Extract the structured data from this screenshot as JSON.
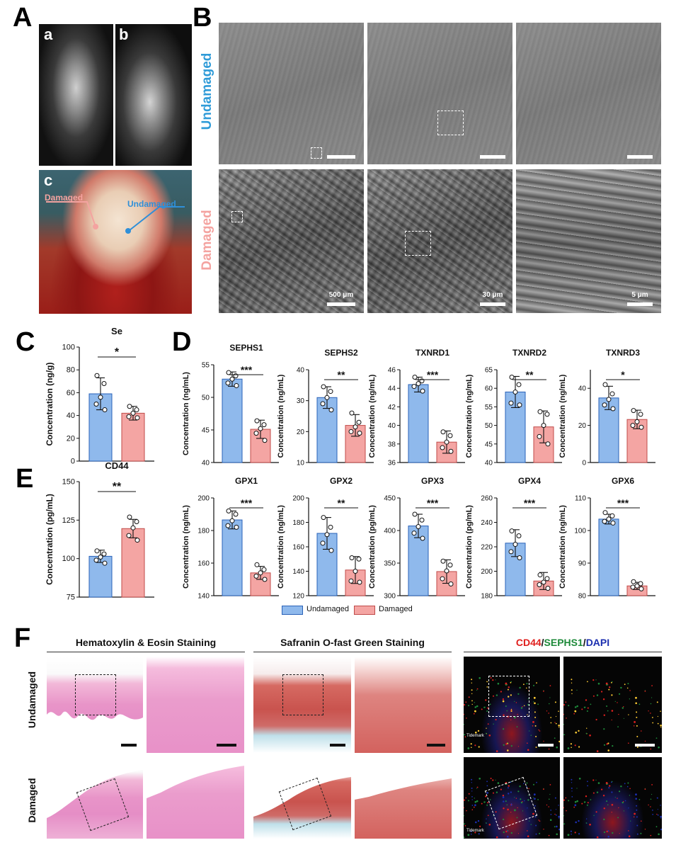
{
  "panels": {
    "A": "A",
    "B": "B",
    "C": "C",
    "D": "D",
    "E": "E",
    "F": "F",
    "A_sub": [
      "a",
      "b",
      "c"
    ]
  },
  "panelA": {
    "label_damaged": "Damaged",
    "label_undamaged": "Undamaged",
    "colors": {
      "damaged": "#f4a3a0",
      "undamaged": "#2f8fd8"
    }
  },
  "panelB": {
    "row_labels": [
      "Undamaged",
      "Damaged"
    ],
    "row_colors": [
      "#2f9bd8",
      "#f4a3a0"
    ],
    "scalebars": [
      "500 μm",
      "30 μm",
      "5 μm"
    ]
  },
  "legend": {
    "undamaged": "Undamaged",
    "damaged": "Damaged"
  },
  "colors": {
    "undamaged": "#8fb9ec",
    "damaged": "#f4a5a3",
    "undamaged_edge": "#2a62b8",
    "damaged_edge": "#c04b49"
  },
  "chart_data": [
    {
      "id": "C",
      "type": "bar",
      "title": "Se",
      "ylabel": "Concentration (ng/g)",
      "ylim": [
        0,
        100
      ],
      "ticks": [
        0,
        20,
        40,
        60,
        80,
        100
      ],
      "categories": [
        "Undamaged",
        "Damaged"
      ],
      "values": [
        59,
        42
      ],
      "errors": [
        14,
        6
      ],
      "points": [
        [
          75,
          68,
          56,
          50,
          45
        ],
        [
          48,
          45,
          42,
          39,
          38
        ]
      ],
      "sig": "*"
    },
    {
      "id": "D1",
      "type": "bar",
      "title": "SEPHS1",
      "ylabel": "Concentration (ng/mL)",
      "ylim": [
        40,
        55
      ],
      "ticks": [
        40,
        45,
        50,
        55
      ],
      "categories": [
        "Undamaged",
        "Damaged"
      ],
      "values": [
        52.8,
        45.1
      ],
      "errors": [
        1.1,
        1.4
      ],
      "points": [
        [
          53.8,
          53.3,
          52.8,
          52.2,
          51.8
        ],
        [
          46.4,
          45.8,
          45.2,
          44.5,
          43.4
        ]
      ],
      "sig": "***"
    },
    {
      "id": "D2",
      "type": "bar",
      "title": "SEPHS2",
      "ylabel": "Concentration (ng/mL)",
      "ylim": [
        10,
        40
      ],
      "ticks": [
        10,
        20,
        30,
        40
      ],
      "categories": [
        "Undamaged",
        "Damaged"
      ],
      "values": [
        31,
        22
      ],
      "errors": [
        3.5,
        3.5
      ],
      "points": [
        [
          34.5,
          33,
          31,
          29,
          27
        ],
        [
          26,
          23,
          21.5,
          20,
          19.5
        ]
      ],
      "sig": "**"
    },
    {
      "id": "D3",
      "type": "bar",
      "title": "TXNRD1",
      "ylabel": "Concentration (ng/mL)",
      "ylim": [
        36,
        46
      ],
      "ticks": [
        36,
        38,
        40,
        42,
        44,
        46
      ],
      "categories": [
        "Undamaged",
        "Damaged"
      ],
      "values": [
        44.4,
        38.2
      ],
      "errors": [
        0.8,
        1.2
      ],
      "points": [
        [
          45.2,
          44.8,
          44.5,
          44.2,
          43.7
        ],
        [
          39.3,
          38.9,
          38.2,
          37.6,
          37.2
        ]
      ],
      "sig": "***"
    },
    {
      "id": "D4",
      "type": "bar",
      "title": "TXNRD2",
      "ylabel": "Concentration (ng/mL)",
      "ylim": [
        40,
        65
      ],
      "ticks": [
        40,
        45,
        50,
        55,
        60,
        65
      ],
      "categories": [
        "Undamaged",
        "Damaged"
      ],
      "values": [
        59,
        49.6
      ],
      "errors": [
        4.2,
        4.3
      ],
      "points": [
        [
          63,
          61,
          59,
          56,
          55.5
        ],
        [
          53.7,
          53,
          50,
          47,
          45
        ]
      ],
      "sig": "**"
    },
    {
      "id": "D5",
      "type": "bar",
      "title": "TXNRD3",
      "ylabel": "Concentration (ng/mL)",
      "ylim": [
        0,
        50
      ],
      "ticks": [
        0,
        20,
        40
      ],
      "categories": [
        "Undamaged",
        "Damaged"
      ],
      "values": [
        34.8,
        23.2
      ],
      "errors": [
        6.3,
        5.0
      ],
      "points": [
        [
          42,
          37,
          34,
          31,
          29
        ],
        [
          28,
          26,
          22,
          20,
          19
        ]
      ],
      "sig": "*"
    },
    {
      "id": "E",
      "type": "bar",
      "title": "CD44",
      "ylabel": "Concentration (pg/mL)",
      "ylim": [
        75,
        150
      ],
      "ticks": [
        75,
        100,
        125,
        150
      ],
      "categories": [
        "Undamaged",
        "Damaged"
      ],
      "values": [
        101.5,
        119.5
      ],
      "errors": [
        4,
        6
      ],
      "points": [
        [
          105,
          103,
          101,
          99,
          97
        ],
        [
          127,
          124,
          120,
          115,
          112
        ]
      ],
      "sig": "**"
    },
    {
      "id": "D6",
      "type": "bar",
      "title": "GPX1",
      "ylabel": "Concentration (ng/mL)",
      "ylim": [
        140,
        200
      ],
      "ticks": [
        140,
        160,
        180,
        200
      ],
      "categories": [
        "Undamaged",
        "Damaged"
      ],
      "values": [
        186.5,
        154
      ],
      "errors": [
        5.5,
        4
      ],
      "points": [
        [
          192,
          190,
          186,
          183,
          182
        ],
        [
          159,
          156,
          154,
          152,
          150
        ]
      ],
      "sig": "***"
    },
    {
      "id": "D7",
      "type": "bar",
      "title": "GPX2",
      "ylabel": "Concentration (ng/mL)",
      "ylim": [
        120,
        200
      ],
      "ticks": [
        120,
        140,
        160,
        180,
        200
      ],
      "categories": [
        "Undamaged",
        "Damaged"
      ],
      "values": [
        171,
        141
      ],
      "errors": [
        13,
        11
      ],
      "points": [
        [
          184,
          176,
          170,
          163,
          157
        ],
        [
          151,
          150,
          140,
          132,
          131
        ]
      ],
      "sig": "**"
    },
    {
      "id": "D8",
      "type": "bar",
      "title": "GPX3",
      "ylabel": "Concentration (pg/mL)",
      "ylim": [
        300,
        450
      ],
      "ticks": [
        300,
        350,
        400,
        450
      ],
      "categories": [
        "Undamaged",
        "Damaged"
      ],
      "values": [
        407,
        337
      ],
      "errors": [
        18,
        18
      ],
      "points": [
        [
          425,
          416,
          406,
          396,
          388
        ],
        [
          353,
          347,
          338,
          326,
          318
        ]
      ],
      "sig": "***"
    },
    {
      "id": "D9",
      "type": "bar",
      "title": "GPX4",
      "ylabel": "Concentration (pg/mL)",
      "ylim": [
        180,
        260
      ],
      "ticks": [
        180,
        200,
        220,
        240,
        260
      ],
      "categories": [
        "Undamaged",
        "Damaged"
      ],
      "values": [
        223,
        192
      ],
      "errors": [
        11,
        7
      ],
      "points": [
        [
          233,
          229,
          222,
          216,
          211
        ],
        [
          197,
          194,
          191,
          189,
          186
        ]
      ],
      "sig": "***"
    },
    {
      "id": "D10",
      "type": "bar",
      "title": "GPX6",
      "ylabel": "Concentration (ng/mL)",
      "ylim": [
        80,
        110
      ],
      "ticks": [
        80,
        90,
        100,
        110
      ],
      "categories": [
        "Undamaged",
        "Damaged"
      ],
      "values": [
        103.5,
        83
      ],
      "errors": [
        1.5,
        1.1
      ],
      "points": [
        [
          105.5,
          104.5,
          103.5,
          102.8,
          102.3
        ],
        [
          84.3,
          83.7,
          83,
          82.6,
          82.1
        ]
      ],
      "sig": "***"
    }
  ],
  "panelF": {
    "headers": [
      "Hematoxylin & Eosin Staining",
      "Safranin O-fast Green Staining"
    ],
    "if_header": {
      "cd44": "CD44",
      "slash1": "/",
      "sephs1": "SEPHS1",
      "slash2": "/",
      "dapi": "DAPI"
    },
    "if_colors": {
      "cd44": "#e0201e",
      "sephs1": "#1e8a3a",
      "dapi": "#1c2fb0"
    },
    "row_labels": [
      "Undamaged",
      "Damaged"
    ],
    "tidemark": "Tidemark"
  }
}
